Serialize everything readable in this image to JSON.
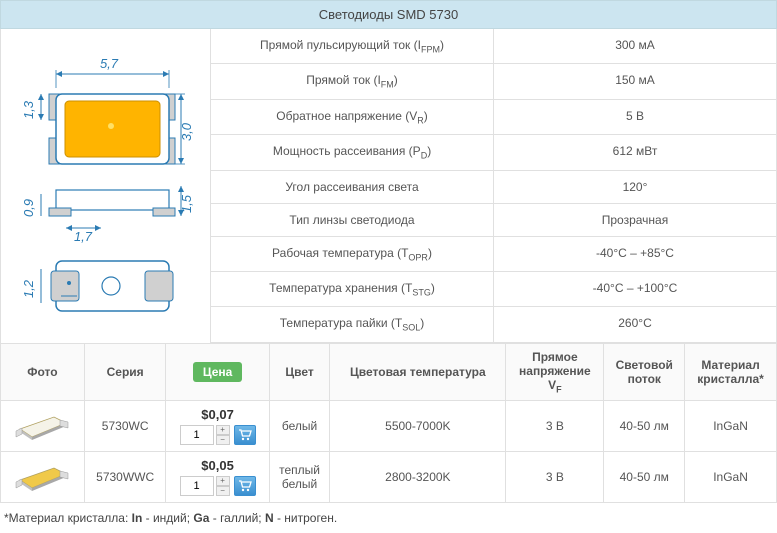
{
  "title": "Светодиоды SMD 5730",
  "diagram": {
    "dims": {
      "width": "5,7",
      "height": "3,0",
      "pad_depth": "1,3",
      "bottom_h": "1,5",
      "bottom_edge": "0,9",
      "pad_w": "1,7",
      "side_h": "1,2"
    },
    "colors": {
      "body": "#ffb400",
      "outline": "#2b7bb3",
      "dim_line": "#2b7bb3",
      "pad": "#d0d0d0"
    }
  },
  "specs": [
    {
      "label": "Прямой пульсирующий ток (I",
      "sub": "FPM",
      "suffix": ")",
      "value": "300 мА"
    },
    {
      "label": "Прямой ток (I",
      "sub": "FM",
      "suffix": ")",
      "value": "150 мА"
    },
    {
      "label": "Обратное напряжение (V",
      "sub": "R",
      "suffix": ")",
      "value": "5 В"
    },
    {
      "label": "Мощность рассеивания (P",
      "sub": "D",
      "suffix": ")",
      "value": "612 мВт"
    },
    {
      "label": "Угол рассеивания света",
      "sub": "",
      "suffix": "",
      "value": "120°"
    },
    {
      "label": "Тип линзы светодиода",
      "sub": "",
      "suffix": "",
      "value": "Прозрачная"
    },
    {
      "label": "Рабочая температура (T",
      "sub": "OPR",
      "suffix": ")",
      "value": "-40°C – +85°C"
    },
    {
      "label": "Температура хранения (T",
      "sub": "STG",
      "suffix": ")",
      "value": "-40°C – +100°C"
    },
    {
      "label": "Температура пайки (T",
      "sub": "SOL",
      "suffix": ")",
      "value": "260°C"
    }
  ],
  "columns": {
    "photo": "Фото",
    "series": "Серия",
    "price": "Цена",
    "color": "Цвет",
    "color_temp": "Цветовая температура",
    "fwd_voltage_l1": "Прямое",
    "fwd_voltage_l2": "напряжение",
    "fwd_voltage_sub": "F",
    "fwd_voltage_sym": "V",
    "flux_l1": "Световой",
    "flux_l2": "поток",
    "crystal_l1": "Материал",
    "crystal_l2": "кристалла*"
  },
  "products": [
    {
      "series": "5730WC",
      "price": "$0,07",
      "qty": "1",
      "color": "белый",
      "color_temp": "5500-7000K",
      "vf": "3 В",
      "flux": "40-50 лм",
      "crystal": "InGaN",
      "led_fill": "#f5f3e8"
    },
    {
      "series": "5730WWC",
      "price": "$0,05",
      "qty": "1",
      "color": "теплый белый",
      "color_temp": "2800-3200K",
      "vf": "3 В",
      "flux": "40-50 лм",
      "crystal": "InGaN",
      "led_fill": "#f0c949"
    }
  ],
  "footnote": {
    "prefix": "*Материал кристалла: ",
    "parts": [
      {
        "b": "In",
        "t": " - индий; "
      },
      {
        "b": "Ga",
        "t": " - галлий; "
      },
      {
        "b": "N",
        "t": " - нитроген."
      }
    ]
  }
}
